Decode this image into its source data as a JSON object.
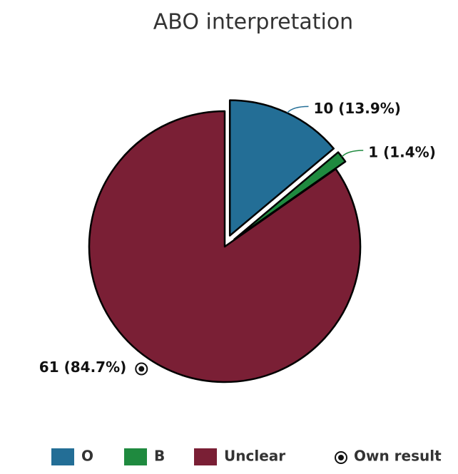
{
  "chart_data": {
    "type": "pie",
    "title": "ABO interpretation",
    "categories": [
      "O",
      "B",
      "Unclear"
    ],
    "values": [
      10,
      1,
      61
    ],
    "value_labels": [
      "10 (13.9%)",
      "1 (1.4%)",
      "61 (84.7%)"
    ],
    "colors": [
      "#236e96",
      "#1f8a3f",
      "#7a1f35"
    ],
    "exploded": [
      "O",
      "B"
    ],
    "own_result": "Unclear",
    "own_result_label": "Own result",
    "legend": "bottom"
  }
}
